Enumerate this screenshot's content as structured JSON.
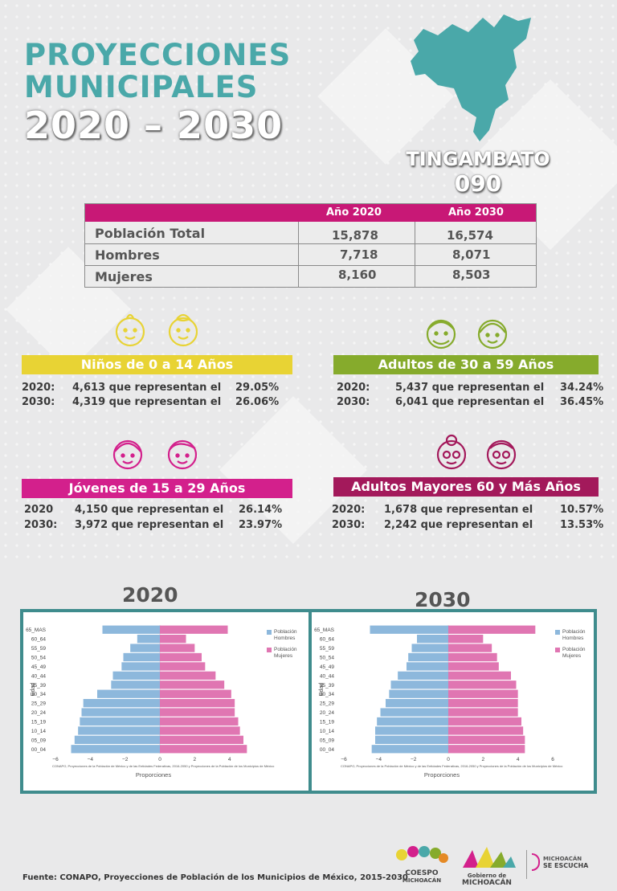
{
  "header": {
    "title_line1": "PROYECCIONES",
    "title_line2": "MUNICIPALES",
    "title_line3": "2020 – 2030",
    "municipality": "TINGAMBATO",
    "code": "090"
  },
  "population_table": {
    "col_2020": "Año 2020",
    "col_2030": "Año 2030",
    "rows": [
      {
        "label": "Población Total",
        "v2020": "15,878",
        "v2030": "16,574"
      },
      {
        "label": "Hombres",
        "v2020": "7,718",
        "v2030": "8,071"
      },
      {
        "label": "Mujeres",
        "v2020": "8,160",
        "v2030": "8,503"
      }
    ]
  },
  "groups": {
    "ninos": {
      "title": "Niños de 0 a 14 Años",
      "color": "#e8d334",
      "rows": [
        {
          "year": "2020:",
          "text": "4,613 que representan el",
          "pct": "29.05%"
        },
        {
          "year": "2030:",
          "text": "4,319 que representan el",
          "pct": "26.06%"
        }
      ]
    },
    "adultos": {
      "title": "Adultos de 30 a 59 Años",
      "color": "#86ab2c",
      "rows": [
        {
          "year": "2020:",
          "text": "5,437 que representan el",
          "pct": "34.24%"
        },
        {
          "year": "2030:",
          "text": "6,041 que representan el",
          "pct": "36.45%"
        }
      ]
    },
    "jovenes": {
      "title": "Jóvenes de 15 a 29 Años",
      "color": "#d3208c",
      "rows": [
        {
          "year": "2020",
          "text": "4,150 que representan el",
          "pct": "26.14%"
        },
        {
          "year": "2030:",
          "text": "3,972 que representan el",
          "pct": "23.97%"
        }
      ]
    },
    "mayores": {
      "title": "Adultos Mayores  60 y Más Años",
      "color": "#a3195b",
      "rows": [
        {
          "year": "2020:",
          "text": "1,678 que representan el",
          "pct": "10.57%"
        },
        {
          "year": "2030:",
          "text": "2,242 que representan el",
          "pct": "13.53%"
        }
      ]
    }
  },
  "charts_header": {
    "year1": "2020",
    "year2": "2030"
  },
  "chart_data": [
    {
      "type": "bar",
      "orientation": "horizontal",
      "subtype": "population-pyramid",
      "title": "2020",
      "categories": [
        "00_04",
        "05_09",
        "10_14",
        "15_19",
        "20_24",
        "25_29",
        "30_34",
        "35_39",
        "40_44",
        "45_49",
        "50_54",
        "55_59",
        "60_64",
        "65_MAS"
      ],
      "series": [
        {
          "name": "Población Hombres",
          "color": "#8db8dc",
          "values": [
            -5.1,
            -4.9,
            -4.7,
            -4.6,
            -4.5,
            -4.4,
            -3.6,
            -2.8,
            -2.7,
            -2.2,
            -2.1,
            -1.7,
            -1.3,
            -3.3
          ]
        },
        {
          "name": "Población Mujeres",
          "color": "#e076b2",
          "values": [
            5.0,
            4.8,
            4.6,
            4.5,
            4.3,
            4.3,
            4.1,
            3.7,
            3.2,
            2.6,
            2.4,
            2.0,
            1.5,
            3.9
          ]
        }
      ],
      "xlabel": "Proporciones",
      "ylabel": "Edad",
      "xlim": [
        -6,
        6
      ],
      "xticks": [
        -6,
        -4,
        -2,
        0,
        2,
        4
      ],
      "xtick_labels": [
        "−6",
        "−4",
        "−2",
        "0",
        "2",
        "4"
      ],
      "note": "CONAPO, Proyecciones de la Población de México y de las Entidades Federativas, 2016-2050 y Proyecciones de la Población de los Municipios de México",
      "legend_position": "top-right"
    },
    {
      "type": "bar",
      "orientation": "horizontal",
      "subtype": "population-pyramid",
      "title": "2030",
      "categories": [
        "00_04",
        "05_09",
        "10_14",
        "15_19",
        "20_24",
        "25_29",
        "30_34",
        "35_39",
        "40_44",
        "45_49",
        "50_54",
        "55_59",
        "60_64",
        "65_MAS"
      ],
      "series": [
        {
          "name": "Población Hombres",
          "color": "#8db8dc",
          "values": [
            -4.4,
            -4.2,
            -4.2,
            -4.1,
            -3.9,
            -3.6,
            -3.4,
            -3.3,
            -2.9,
            -2.4,
            -2.3,
            -2.1,
            -1.8,
            -4.5
          ]
        },
        {
          "name": "Población Mujeres",
          "color": "#e076b2",
          "values": [
            4.4,
            4.4,
            4.3,
            4.2,
            4.0,
            4.0,
            4.0,
            3.9,
            3.6,
            2.9,
            2.8,
            2.5,
            2.0,
            5.0
          ]
        }
      ],
      "xlabel": "Proporciones",
      "ylabel": "Edad",
      "xlim": [
        -6,
        6
      ],
      "xticks": [
        -6,
        -4,
        -2,
        0,
        2,
        4,
        6
      ],
      "xtick_labels": [
        "−6",
        "−4",
        "−2",
        "0",
        "2",
        "4",
        "6"
      ],
      "note": "CONAPO, Proyecciones de la Población de México y de las Entidades Federativas, 2016-2050 y Proyecciones de la Población de los Municipios de México",
      "legend_position": "top-right"
    }
  ],
  "footer": {
    "source": "Fuente: CONAPO, Proyecciones de Población de los Municipios de México, 2015-2030",
    "logo1_line1": "COESPO",
    "logo1_line2": "MICHOACÁN",
    "logo2_line1": "Gobierno de",
    "logo2_line2": "MICHOACÁN",
    "logo3_line1": "MICHOACÁN",
    "logo3_line2": "SE ESCUCHA"
  }
}
